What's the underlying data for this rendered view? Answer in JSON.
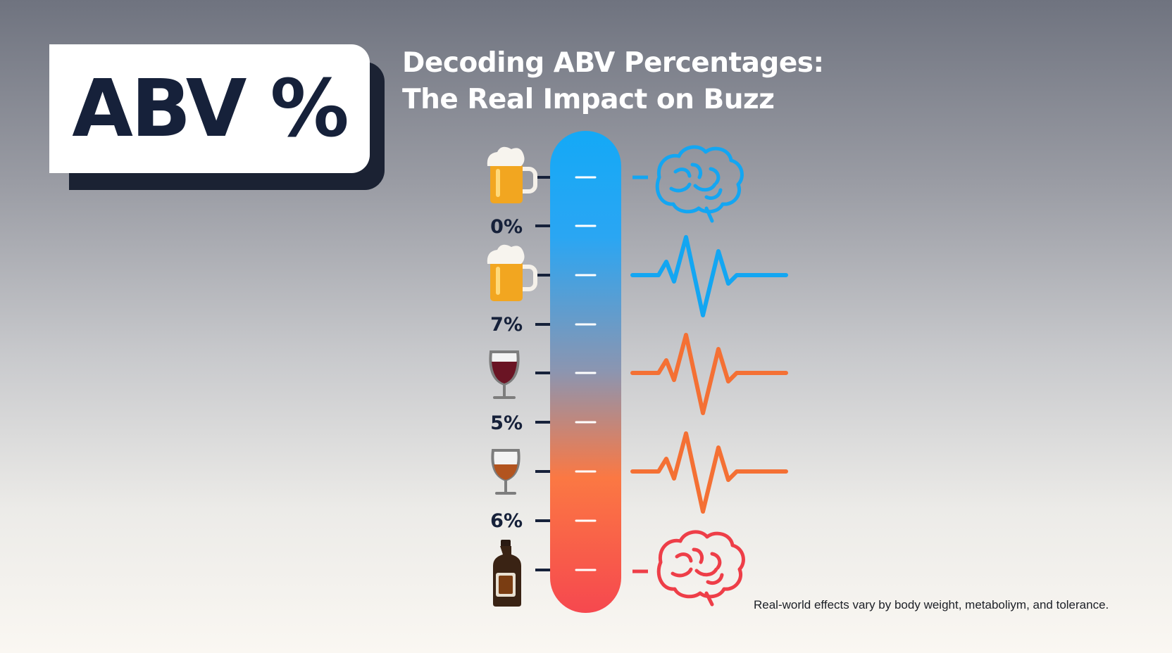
{
  "badge": {
    "label": "ABV %"
  },
  "title": {
    "line1": "Decoding ABV Percentages:",
    "line2": "The Real Impact on Buzz"
  },
  "scale": {
    "labels": [
      "0%",
      "7%",
      "5%",
      "6%"
    ],
    "drinks": [
      "beer-mug-icon",
      "beer-mug-icon",
      "red-wine-glass-icon",
      "amber-wine-glass-icon",
      "liquor-bottle-icon"
    ],
    "effects": [
      "blue-brain-icon",
      "blue-pulse-wave-icon",
      "orange-pulse-wave-icon",
      "orange-pulse-wave-icon",
      "red-brain-icon"
    ],
    "gradient_colors": [
      "#14a9f6",
      "#2aa6f3",
      "#8c95b0",
      "#fb7843",
      "#f6484f"
    ]
  },
  "footnote": "Real-world effects vary by body weight, metaboliym, and tolerance."
}
